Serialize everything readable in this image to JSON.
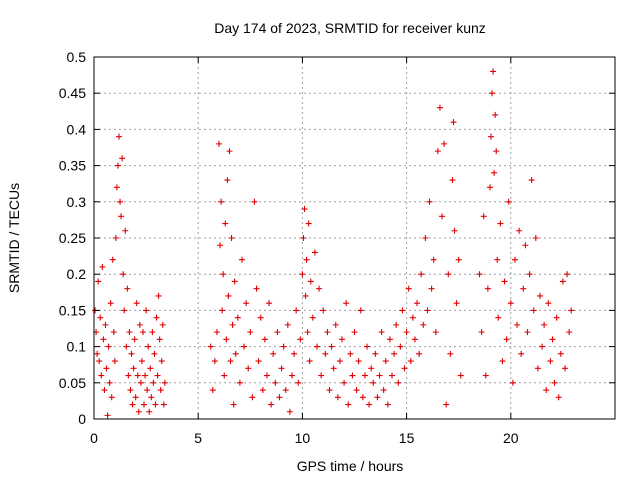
{
  "chart_data": {
    "type": "scatter",
    "title": "Day 174 of 2023, SRMTID for receiver kunz",
    "xlabel": "GPS time / hours",
    "ylabel": "SRMTID / TECUs",
    "xlim": [
      0,
      25
    ],
    "ylim": [
      0,
      0.5
    ],
    "x_ticks": [
      0,
      5,
      10,
      15,
      20
    ],
    "x_tick_labels": [
      "0",
      "5",
      "10",
      "15",
      "20"
    ],
    "y_ticks": [
      0,
      0.05,
      0.1,
      0.15,
      0.2,
      0.25,
      0.3,
      0.35,
      0.4,
      0.45,
      0.5
    ],
    "y_tick_labels": [
      "0",
      "0.05",
      "0.1",
      "0.15",
      "0.2",
      "0.25",
      "0.3",
      "0.35",
      "0.4",
      "0.45",
      "0.5"
    ],
    "grid": true,
    "marker": "+",
    "color": "#e00000",
    "series": [
      {
        "name": "SRMTID",
        "points": [
          [
            0.05,
            0.15
          ],
          [
            0.1,
            0.12
          ],
          [
            0.15,
            0.09
          ],
          [
            0.2,
            0.19
          ],
          [
            0.25,
            0.08
          ],
          [
            0.3,
            0.14
          ],
          [
            0.35,
            0.06
          ],
          [
            0.4,
            0.21
          ],
          [
            0.45,
            0.11
          ],
          [
            0.5,
            0.04
          ],
          [
            0.55,
            0.13
          ],
          [
            0.6,
            0.07
          ],
          [
            0.65,
            0.005
          ],
          [
            0.7,
            0.1
          ],
          [
            0.75,
            0.05
          ],
          [
            0.8,
            0.16
          ],
          [
            0.85,
            0.03
          ],
          [
            0.9,
            0.22
          ],
          [
            0.95,
            0.12
          ],
          [
            1.0,
            0.08
          ],
          [
            1.05,
            0.25
          ],
          [
            1.1,
            0.32
          ],
          [
            1.15,
            0.35
          ],
          [
            1.2,
            0.39
          ],
          [
            1.25,
            0.3
          ],
          [
            1.3,
            0.28
          ],
          [
            1.35,
            0.36
          ],
          [
            1.4,
            0.2
          ],
          [
            1.45,
            0.15
          ],
          [
            1.5,
            0.26
          ],
          [
            1.55,
            0.1
          ],
          [
            1.6,
            0.18
          ],
          [
            1.65,
            0.06
          ],
          [
            1.7,
            0.12
          ],
          [
            1.75,
            0.04
          ],
          [
            1.8,
            0.09
          ],
          [
            1.85,
            0.02
          ],
          [
            1.9,
            0.07
          ],
          [
            1.95,
            0.11
          ],
          [
            2.0,
            0.03
          ],
          [
            2.05,
            0.16
          ],
          [
            2.1,
            0.06
          ],
          [
            2.15,
            0.01
          ],
          [
            2.2,
            0.13
          ],
          [
            2.25,
            0.05
          ],
          [
            2.3,
            0.08
          ],
          [
            2.35,
            0.12
          ],
          [
            2.4,
            0.02
          ],
          [
            2.45,
            0.06
          ],
          [
            2.5,
            0.15
          ],
          [
            2.55,
            0.04
          ],
          [
            2.6,
            0.1
          ],
          [
            2.65,
            0.01
          ],
          [
            2.7,
            0.07
          ],
          [
            2.75,
            0.03
          ],
          [
            2.8,
            0.12
          ],
          [
            2.85,
            0.05
          ],
          [
            2.9,
            0.09
          ],
          [
            2.95,
            0.02
          ],
          [
            3.0,
            0.14
          ],
          [
            3.05,
            0.06
          ],
          [
            3.1,
            0.17
          ],
          [
            3.15,
            0.11
          ],
          [
            3.2,
            0.04
          ],
          [
            3.25,
            0.08
          ],
          [
            3.3,
            0.13
          ],
          [
            3.35,
            0.02
          ],
          [
            3.4,
            0.05
          ],
          [
            5.6,
            0.1
          ],
          [
            5.7,
            0.04
          ],
          [
            5.8,
            0.08
          ],
          [
            5.9,
            0.12
          ],
          [
            6.0,
            0.38
          ],
          [
            6.05,
            0.24
          ],
          [
            6.1,
            0.3
          ],
          [
            6.15,
            0.15
          ],
          [
            6.2,
            0.2
          ],
          [
            6.25,
            0.06
          ],
          [
            6.3,
            0.27
          ],
          [
            6.35,
            0.11
          ],
          [
            6.4,
            0.33
          ],
          [
            6.45,
            0.17
          ],
          [
            6.5,
            0.37
          ],
          [
            6.55,
            0.08
          ],
          [
            6.6,
            0.25
          ],
          [
            6.65,
            0.13
          ],
          [
            6.7,
            0.02
          ],
          [
            6.75,
            0.19
          ],
          [
            6.8,
            0.09
          ],
          [
            6.9,
            0.14
          ],
          [
            7.0,
            0.05
          ],
          [
            7.1,
            0.22
          ],
          [
            7.2,
            0.1
          ],
          [
            7.3,
            0.16
          ],
          [
            7.4,
            0.07
          ],
          [
            7.5,
            0.12
          ],
          [
            7.6,
            0.03
          ],
          [
            7.7,
            0.3
          ],
          [
            7.8,
            0.18
          ],
          [
            7.9,
            0.08
          ],
          [
            8.0,
            0.14
          ],
          [
            8.1,
            0.04
          ],
          [
            8.2,
            0.11
          ],
          [
            8.3,
            0.06
          ],
          [
            8.4,
            0.16
          ],
          [
            8.5,
            0.02
          ],
          [
            8.6,
            0.09
          ],
          [
            8.7,
            0.05
          ],
          [
            8.8,
            0.12
          ],
          [
            8.9,
            0.03
          ],
          [
            9.0,
            0.07
          ],
          [
            9.1,
            0.1
          ],
          [
            9.2,
            0.04
          ],
          [
            9.3,
            0.13
          ],
          [
            9.4,
            0.01
          ],
          [
            9.5,
            0.06
          ],
          [
            9.6,
            0.09
          ],
          [
            9.7,
            0.15
          ],
          [
            9.8,
            0.05
          ],
          [
            9.9,
            0.11
          ],
          [
            10.0,
            0.2
          ],
          [
            10.05,
            0.25
          ],
          [
            10.1,
            0.29
          ],
          [
            10.15,
            0.17
          ],
          [
            10.2,
            0.22
          ],
          [
            10.25,
            0.12
          ],
          [
            10.3,
            0.27
          ],
          [
            10.35,
            0.08
          ],
          [
            10.4,
            0.19
          ],
          [
            10.5,
            0.14
          ],
          [
            10.6,
            0.23
          ],
          [
            10.7,
            0.1
          ],
          [
            10.8,
            0.18
          ],
          [
            10.9,
            0.06
          ],
          [
            11.0,
            0.15
          ],
          [
            11.1,
            0.09
          ],
          [
            11.2,
            0.12
          ],
          [
            11.3,
            0.04
          ],
          [
            11.4,
            0.1
          ],
          [
            11.5,
            0.07
          ],
          [
            11.6,
            0.13
          ],
          [
            11.7,
            0.03
          ],
          [
            11.8,
            0.08
          ],
          [
            11.9,
            0.11
          ],
          [
            12.0,
            0.05
          ],
          [
            12.1,
            0.16
          ],
          [
            12.2,
            0.02
          ],
          [
            12.3,
            0.09
          ],
          [
            12.4,
            0.06
          ],
          [
            12.5,
            0.12
          ],
          [
            12.6,
            0.04
          ],
          [
            12.7,
            0.08
          ],
          [
            12.8,
            0.15
          ],
          [
            12.9,
            0.03
          ],
          [
            13.0,
            0.06
          ],
          [
            13.1,
            0.1
          ],
          [
            13.2,
            0.02
          ],
          [
            13.3,
            0.07
          ],
          [
            13.4,
            0.05
          ],
          [
            13.5,
            0.09
          ],
          [
            13.6,
            0.03
          ],
          [
            13.7,
            0.06
          ],
          [
            13.8,
            0.12
          ],
          [
            13.9,
            0.04
          ],
          [
            14.0,
            0.08
          ],
          [
            14.1,
            0.02
          ],
          [
            14.2,
            0.11
          ],
          [
            14.3,
            0.06
          ],
          [
            14.4,
            0.09
          ],
          [
            14.5,
            0.13
          ],
          [
            14.6,
            0.05
          ],
          [
            14.7,
            0.1
          ],
          [
            14.8,
            0.15
          ],
          [
            14.9,
            0.07
          ],
          [
            15.0,
            0.12
          ],
          [
            15.1,
            0.18
          ],
          [
            15.2,
            0.08
          ],
          [
            15.3,
            0.14
          ],
          [
            15.4,
            0.11
          ],
          [
            15.5,
            0.16
          ],
          [
            15.6,
            0.09
          ],
          [
            15.7,
            0.2
          ],
          [
            15.8,
            0.13
          ],
          [
            15.9,
            0.25
          ],
          [
            16.0,
            0.15
          ],
          [
            16.1,
            0.3
          ],
          [
            16.2,
            0.18
          ],
          [
            16.3,
            0.22
          ],
          [
            16.4,
            0.12
          ],
          [
            16.5,
            0.37
          ],
          [
            16.6,
            0.43
          ],
          [
            16.7,
            0.28
          ],
          [
            16.8,
            0.38
          ],
          [
            16.9,
            0.02
          ],
          [
            17.0,
            0.2
          ],
          [
            17.1,
            0.09
          ],
          [
            17.2,
            0.33
          ],
          [
            17.25,
            0.41
          ],
          [
            17.3,
            0.26
          ],
          [
            17.4,
            0.16
          ],
          [
            17.5,
            0.22
          ],
          [
            17.6,
            0.06
          ],
          [
            18.5,
            0.2
          ],
          [
            18.6,
            0.12
          ],
          [
            18.7,
            0.28
          ],
          [
            18.8,
            0.06
          ],
          [
            18.9,
            0.18
          ],
          [
            19.0,
            0.32
          ],
          [
            19.05,
            0.39
          ],
          [
            19.1,
            0.45
          ],
          [
            19.15,
            0.48
          ],
          [
            19.2,
            0.34
          ],
          [
            19.25,
            0.42
          ],
          [
            19.3,
            0.37
          ],
          [
            19.35,
            0.22
          ],
          [
            19.4,
            0.14
          ],
          [
            19.5,
            0.27
          ],
          [
            19.6,
            0.08
          ],
          [
            19.7,
            0.19
          ],
          [
            19.8,
            0.11
          ],
          [
            19.9,
            0.3
          ],
          [
            20.0,
            0.16
          ],
          [
            20.1,
            0.05
          ],
          [
            20.2,
            0.22
          ],
          [
            20.3,
            0.13
          ],
          [
            20.4,
            0.26
          ],
          [
            20.5,
            0.09
          ],
          [
            20.6,
            0.18
          ],
          [
            20.7,
            0.24
          ],
          [
            20.8,
            0.12
          ],
          [
            20.9,
            0.2
          ],
          [
            21.0,
            0.33
          ],
          [
            21.1,
            0.15
          ],
          [
            21.2,
            0.25
          ],
          [
            21.3,
            0.07
          ],
          [
            21.4,
            0.17
          ],
          [
            21.5,
            0.1
          ],
          [
            21.6,
            0.13
          ],
          [
            21.7,
            0.04
          ],
          [
            21.8,
            0.16
          ],
          [
            21.9,
            0.08
          ],
          [
            22.0,
            0.11
          ],
          [
            22.1,
            0.05
          ],
          [
            22.2,
            0.14
          ],
          [
            22.3,
            0.03
          ],
          [
            22.4,
            0.09
          ],
          [
            22.5,
            0.19
          ],
          [
            22.6,
            0.07
          ],
          [
            22.7,
            0.2
          ],
          [
            22.8,
            0.12
          ],
          [
            22.9,
            0.15
          ]
        ]
      }
    ]
  }
}
